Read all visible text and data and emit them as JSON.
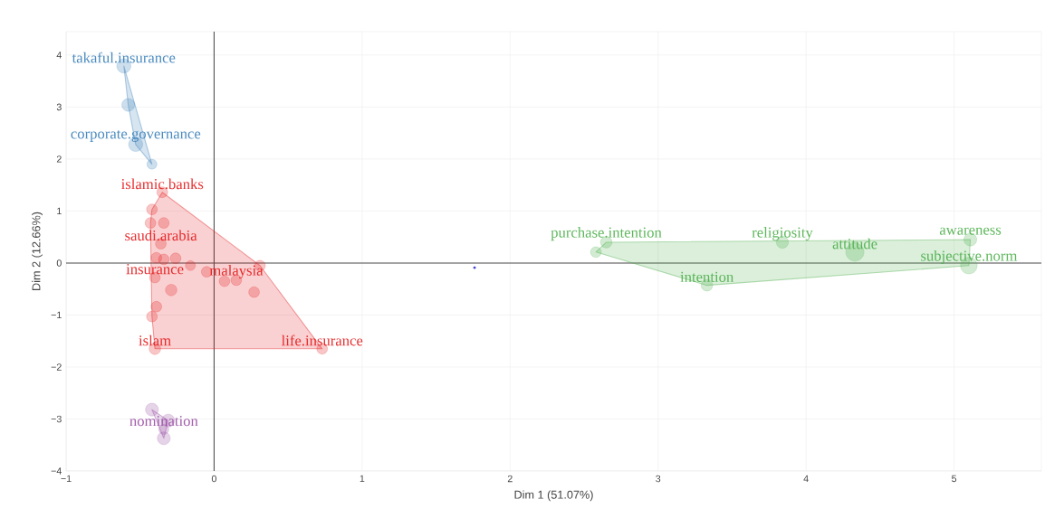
{
  "chart_data": {
    "type": "bubble",
    "xlabel": "Dim 1 (51.07%)",
    "ylabel": "Dim 2 (12.66%)",
    "xlim": [
      -1,
      5.59
    ],
    "ylim": [
      -4,
      4.45
    ],
    "xticks": [
      {
        "value": -1,
        "label": "−1"
      },
      0,
      1,
      2,
      3,
      4,
      5
    ],
    "yticks": [
      {
        "value": -4,
        "label": "−4"
      },
      {
        "value": -3,
        "label": "−3"
      },
      {
        "value": -2,
        "label": "−2"
      },
      {
        "value": -1,
        "label": "−1"
      },
      0,
      1,
      2,
      3,
      4
    ],
    "grid": true,
    "series": [
      {
        "color": "#377eb8",
        "x": [
          -0.61,
          -0.58,
          -0.53,
          -0.42
        ],
        "values": [
          3.79,
          3.04,
          2.28,
          1.9
        ],
        "sizes": [
          0.6,
          0.5,
          0.6,
          0.3
        ]
      },
      {
        "color": "#e41a1c",
        "x": [
          -0.35,
          -0.42,
          -0.43,
          -0.34,
          -0.36,
          -0.39,
          -0.34,
          -0.26,
          -0.16,
          -0.05,
          0.07,
          0.15,
          0.31,
          0.27,
          -0.4,
          -0.29,
          -0.39,
          -0.42,
          -0.4,
          0.73
        ],
        "values": [
          1.36,
          1.03,
          0.77,
          0.77,
          0.37,
          0.1,
          0.07,
          0.09,
          -0.05,
          -0.17,
          -0.35,
          -0.33,
          -0.05,
          -0.56,
          -0.28,
          -0.52,
          -0.84,
          -1.03,
          -1.65,
          -1.65
        ],
        "sizes": [
          0.35,
          0.35,
          0.35,
          0.35,
          0.35,
          0.35,
          0.35,
          0.35,
          0.3,
          0.35,
          0.35,
          0.35,
          0.35,
          0.35,
          0.35,
          0.4,
          0.35,
          0.35,
          0.4,
          0.35
        ]
      },
      {
        "color": "#984ea3",
        "x": [
          -0.42,
          -0.31,
          -0.34,
          -0.34
        ],
        "values": [
          -2.82,
          -3.03,
          -3.37,
          -3.2
        ],
        "sizes": [
          0.5,
          0.5,
          0.5,
          0.3
        ]
      },
      {
        "color": "#4daf4a",
        "x": [
          2.58,
          2.65,
          3.33,
          3.84,
          4.33,
          5.11,
          5.1
        ],
        "values": [
          0.21,
          0.4,
          -0.43,
          0.4,
          0.21,
          0.45,
          -0.05
        ],
        "sizes": [
          0.35,
          0.4,
          0.4,
          0.45,
          1,
          0.5,
          0.85
        ]
      },
      {
        "type": "scatter",
        "color": "#3b3bd6",
        "x": [
          1.76
        ],
        "values": [
          -0.09
        ]
      }
    ],
    "annotations": [
      {
        "text": "takaful.insurance",
        "x": -0.61,
        "y": 3.79
      },
      {
        "text": "corporate.governance",
        "x": -0.53,
        "y": 2.28
      },
      {
        "text": "islamic.banks",
        "x": -0.35,
        "y": 1.36
      },
      {
        "text": "saudi.arabia",
        "x": -0.36,
        "y": 0.37
      },
      {
        "text": "insurance",
        "x": -0.4,
        "y": -0.28
      },
      {
        "text": "malaysia",
        "x": 0.15,
        "y": -0.33
      },
      {
        "text": "islam",
        "x": -0.4,
        "y": -1.65
      },
      {
        "text": "life.insurance",
        "x": 0.73,
        "y": -1.65
      },
      {
        "text": "nomination",
        "x": -0.34,
        "y": -3.2
      },
      {
        "text": "purchase.intention",
        "x": 2.65,
        "y": 0.4
      },
      {
        "text": "intention",
        "x": 3.33,
        "y": -0.43
      },
      {
        "text": "religiosity",
        "x": 3.84,
        "y": 0.4
      },
      {
        "text": "attitude",
        "x": 4.33,
        "y": 0.21
      },
      {
        "text": "awareness",
        "x": 5.11,
        "y": 0.45
      },
      {
        "text": "subjective.norm",
        "x": 5.1,
        "y": -0.05
      }
    ]
  }
}
